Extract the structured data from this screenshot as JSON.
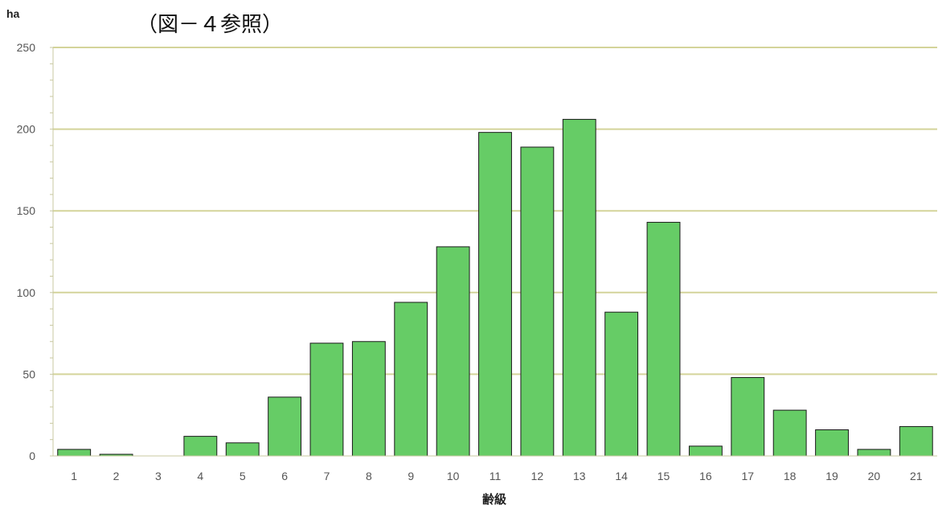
{
  "caption": "（図－４参照）",
  "chart_data": {
    "type": "bar",
    "ylabel": "ha",
    "xlabel": "齢級",
    "ylim": [
      0,
      250
    ],
    "yticks": [
      0,
      50,
      100,
      150,
      200,
      250
    ],
    "grid": true,
    "categories": [
      "1",
      "2",
      "3",
      "4",
      "5",
      "6",
      "7",
      "8",
      "9",
      "10",
      "11",
      "12",
      "13",
      "14",
      "15",
      "16",
      "17",
      "18",
      "19",
      "20",
      "21"
    ],
    "values": [
      4,
      1,
      0,
      12,
      8,
      36,
      69,
      70,
      94,
      128,
      198,
      189,
      206,
      88,
      143,
      6,
      48,
      28,
      16,
      4,
      18
    ],
    "colors": {
      "bar": "#66cc66",
      "bar_stroke": "#1a1a1a",
      "grid": "#d4d49a",
      "axis": "#c8c8a0"
    }
  }
}
